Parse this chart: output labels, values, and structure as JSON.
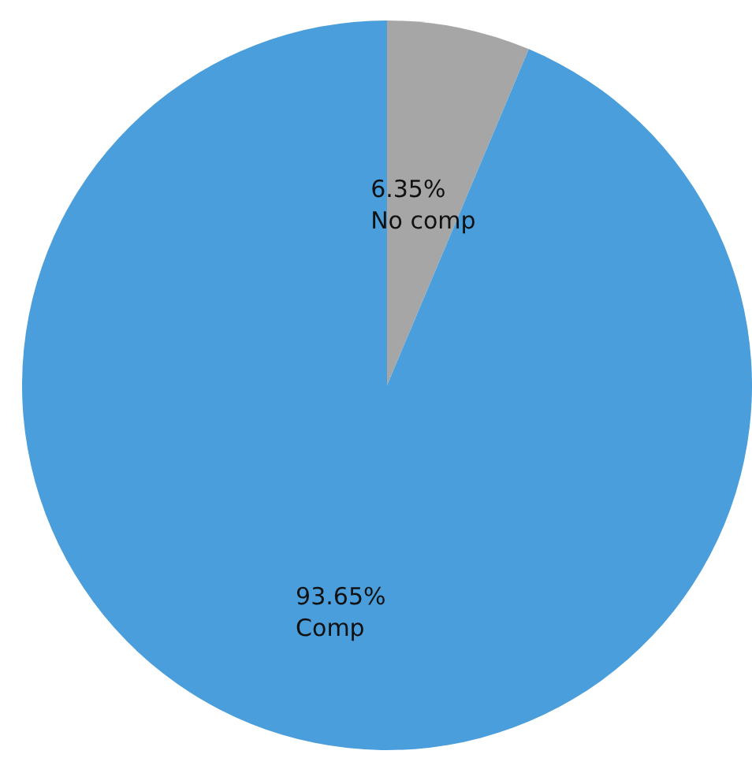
{
  "chart_data": {
    "type": "pie",
    "categories": [
      "No comp",
      "Comp"
    ],
    "values": [
      6.35,
      93.65
    ],
    "value_labels": [
      "6.35%",
      "93.65%"
    ],
    "colors": [
      "#a6a6a6",
      "#4a9edb"
    ],
    "legend": false
  }
}
